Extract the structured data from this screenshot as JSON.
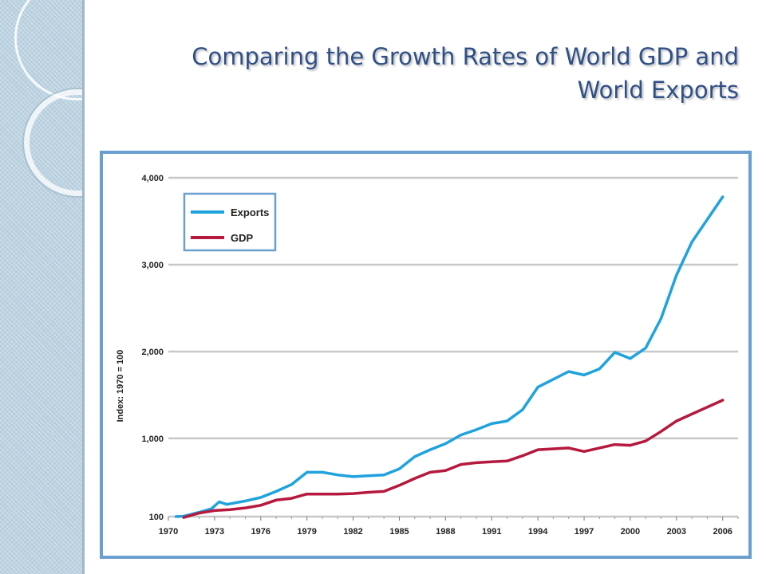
{
  "slide": {
    "title_line1": "Comparing the Growth Rates of World GDP and",
    "title_line2": "World Exports"
  },
  "chart_data": {
    "type": "line",
    "title": "Comparing the Growth Rates of World GDP and World Exports",
    "ylabel": "Index: 1970 = 100",
    "xlabel": "",
    "xlim": [
      1970,
      2007
    ],
    "ylim": [
      100,
      4000
    ],
    "y_scale": "linear-from-100",
    "grid": "horizontal",
    "legend_position": "top-left",
    "x_ticks": [
      1970,
      1973,
      1976,
      1979,
      1982,
      1985,
      1988,
      1991,
      1994,
      1997,
      2000,
      2003,
      2006
    ],
    "x_tick_labels": [
      "1970",
      "1973",
      "1976",
      "1979",
      "1982",
      "1985",
      "1988",
      "1991",
      "1994",
      "1997",
      "2000",
      "2003",
      "2006"
    ],
    "y_ticks": [
      100,
      1000,
      2000,
      3000,
      4000
    ],
    "y_tick_labels": [
      "100",
      "1,000",
      "2,000",
      "3,000",
      "4,000"
    ],
    "series": [
      {
        "name": "Exports",
        "color": "#1fa3dc",
        "points": [
          [
            1970.5,
            100
          ],
          [
            1971,
            105
          ],
          [
            1972,
            150
          ],
          [
            1972.8,
            190
          ],
          [
            1973.3,
            270
          ],
          [
            1973.8,
            240
          ],
          [
            1975,
            280
          ],
          [
            1976,
            320
          ],
          [
            1977,
            390
          ],
          [
            1978,
            470
          ],
          [
            1979,
            610
          ],
          [
            1980,
            610
          ],
          [
            1981,
            580
          ],
          [
            1982,
            560
          ],
          [
            1983,
            570
          ],
          [
            1984,
            580
          ],
          [
            1985,
            650
          ],
          [
            1986,
            790
          ],
          [
            1987,
            870
          ],
          [
            1988,
            940
          ],
          [
            1989,
            1040
          ],
          [
            1990,
            1100
          ],
          [
            1991,
            1170
          ],
          [
            1992,
            1200
          ],
          [
            1993,
            1330
          ],
          [
            1994,
            1590
          ],
          [
            1995,
            1680
          ],
          [
            1996,
            1770
          ],
          [
            1997,
            1730
          ],
          [
            1998,
            1800
          ],
          [
            1999,
            1990
          ],
          [
            2000,
            1920
          ],
          [
            2001,
            2040
          ],
          [
            2002,
            2380
          ],
          [
            2003,
            2880
          ],
          [
            2004,
            3260
          ],
          [
            2005,
            3520
          ],
          [
            2006,
            3780
          ]
        ]
      },
      {
        "name": "GDP",
        "color": "#b5193d",
        "points": [
          [
            1971,
            90
          ],
          [
            1972,
            140
          ],
          [
            1973,
            170
          ],
          [
            1974,
            180
          ],
          [
            1975,
            200
          ],
          [
            1976,
            230
          ],
          [
            1977,
            290
          ],
          [
            1978,
            310
          ],
          [
            1979,
            360
          ],
          [
            1980,
            360
          ],
          [
            1981,
            360
          ],
          [
            1982,
            365
          ],
          [
            1983,
            380
          ],
          [
            1984,
            390
          ],
          [
            1985,
            460
          ],
          [
            1986,
            540
          ],
          [
            1987,
            610
          ],
          [
            1988,
            630
          ],
          [
            1989,
            700
          ],
          [
            1990,
            720
          ],
          [
            1991,
            730
          ],
          [
            1992,
            740
          ],
          [
            1993,
            800
          ],
          [
            1994,
            870
          ],
          [
            1995,
            880
          ],
          [
            1996,
            890
          ],
          [
            1997,
            850
          ],
          [
            1998,
            890
          ],
          [
            1999,
            930
          ],
          [
            2000,
            920
          ],
          [
            2001,
            970
          ],
          [
            2002,
            1080
          ],
          [
            2003,
            1200
          ],
          [
            2004,
            1280
          ],
          [
            2005,
            1360
          ],
          [
            2006,
            1440
          ]
        ]
      }
    ]
  }
}
